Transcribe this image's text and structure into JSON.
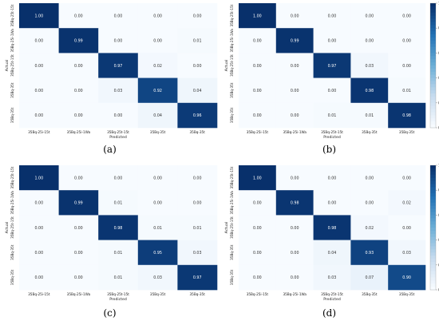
{
  "colors": {
    "low": "#f7fbff",
    "high": "#08306b"
  },
  "panels": [
    {
      "label": "(a)",
      "colorbar": false,
      "chart_data": {
        "type": "heatmap",
        "xlabel": "Predicted",
        "ylabel": "Actual",
        "x_categories": [
          "35Bq-25i-15t",
          "35Bq-25i-1Wa",
          "35Bq-25t-15t",
          "35Bq-35t",
          "35Bq-35t"
        ],
        "y_categories": [
          "35Bq-25t-15t",
          "35Bq-25i-1Wa",
          "35Bq-25t-15t",
          "35Bq-35t",
          "35Bq-35t"
        ],
        "values": [
          [
            1.0,
            0.0,
            0.0,
            0.0,
            0.0
          ],
          [
            0.0,
            0.99,
            0.0,
            0.0,
            0.01
          ],
          [
            0.0,
            0.0,
            0.97,
            0.02,
            0.0
          ],
          [
            0.0,
            0.0,
            0.03,
            0.92,
            0.04
          ],
          [
            0.0,
            0.0,
            0.0,
            0.04,
            0.96
          ]
        ]
      }
    },
    {
      "label": "(b)",
      "colorbar": true,
      "chart_data": {
        "type": "heatmap",
        "xlabel": "Predicted",
        "ylabel": "Actual",
        "x_categories": [
          "35Bq-25i-15t",
          "35Bq-25i-1Wa",
          "35Bq-25t-15t",
          "35Bq-35t",
          "35Bq-35t"
        ],
        "y_categories": [
          "35Bq-25t-15t",
          "35Bq-25i-1Wa",
          "35Bq-25t-15t",
          "35Bq-35t",
          "35Bq-35t"
        ],
        "values": [
          [
            1.0,
            0.0,
            0.0,
            0.0,
            0.0
          ],
          [
            0.0,
            0.99,
            0.0,
            0.0,
            0.0
          ],
          [
            0.0,
            0.0,
            0.97,
            0.03,
            0.0
          ],
          [
            0.0,
            0.0,
            0.0,
            0.98,
            0.01
          ],
          [
            0.0,
            0.0,
            0.01,
            0.01,
            0.98
          ]
        ],
        "colorbar_ticks": [
          "0.0",
          "0.2",
          "0.4",
          "0.6",
          "0.8",
          "1.0"
        ]
      }
    },
    {
      "label": "(c)",
      "colorbar": false,
      "chart_data": {
        "type": "heatmap",
        "xlabel": "Predicted",
        "ylabel": "Actual",
        "x_categories": [
          "35Bq-25i-15t",
          "35Bq-25i-1Wa",
          "35Bq-25t-15t",
          "35Bq-35t",
          "35Bq-35t"
        ],
        "y_categories": [
          "35Bq-25t-15t",
          "35Bq-25i-1Wa",
          "35Bq-25t-15t",
          "35Bq-35t",
          "35Bq-35t"
        ],
        "values": [
          [
            1.0,
            0.0,
            0.0,
            0.0,
            0.0
          ],
          [
            0.0,
            0.99,
            0.01,
            0.0,
            0.0
          ],
          [
            0.0,
            0.0,
            0.98,
            0.01,
            0.01
          ],
          [
            0.0,
            0.0,
            0.01,
            0.95,
            0.03
          ],
          [
            0.0,
            0.0,
            0.01,
            0.03,
            0.97
          ]
        ]
      }
    },
    {
      "label": "(d)",
      "colorbar": true,
      "chart_data": {
        "type": "heatmap",
        "xlabel": "Predicted",
        "ylabel": "Actual",
        "x_categories": [
          "35Bq-25i-15t",
          "35Bq-25i-1Wa",
          "35Bq-25t-15t",
          "35Bq-35t",
          "35Bq-35t"
        ],
        "y_categories": [
          "35Bq-25t-15t",
          "35Bq-25i-1Wa",
          "35Bq-25t-15t",
          "35Bq-35t",
          "35Bq-35t"
        ],
        "values": [
          [
            1.0,
            0.0,
            0.0,
            0.0,
            0.0
          ],
          [
            0.0,
            0.98,
            0.0,
            0.0,
            0.02
          ],
          [
            0.0,
            0.0,
            0.98,
            0.02,
            0.0
          ],
          [
            0.0,
            0.0,
            0.04,
            0.93,
            0.03
          ],
          [
            0.0,
            0.0,
            0.03,
            0.07,
            0.9
          ]
        ],
        "colorbar_ticks": [
          "0.0",
          "0.2",
          "0.4",
          "0.6",
          "0.8",
          "1.0"
        ]
      }
    }
  ]
}
